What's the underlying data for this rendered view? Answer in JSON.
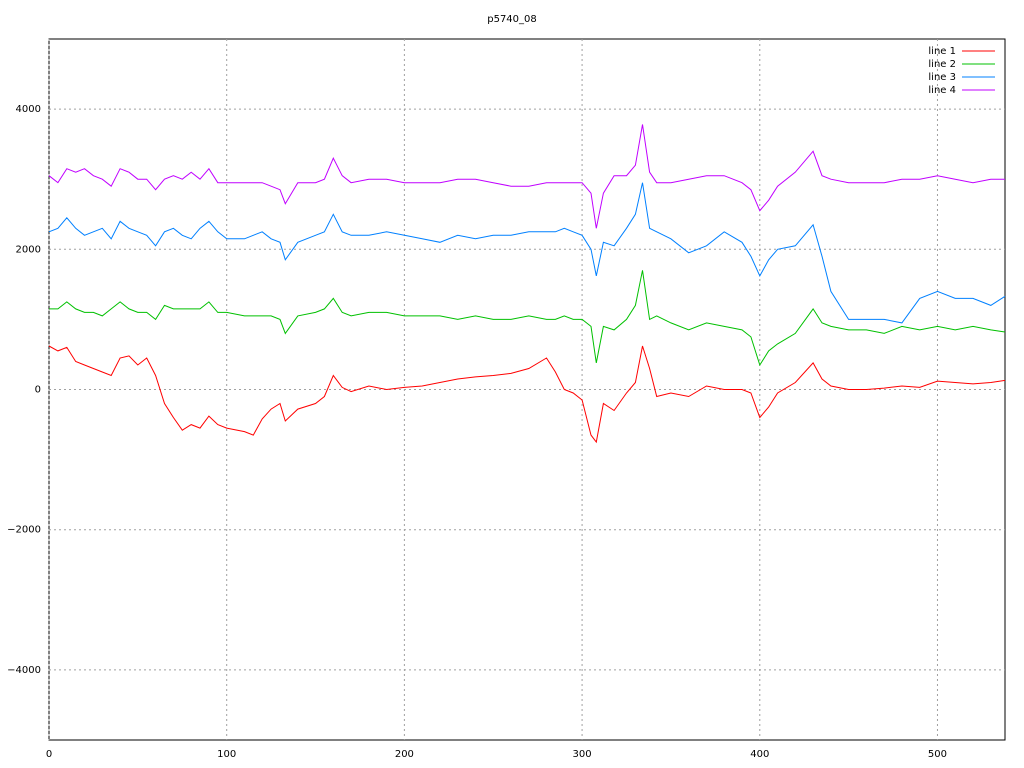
{
  "chart_data": {
    "type": "line",
    "title": "p5740_08",
    "x": [
      0,
      5,
      10,
      15,
      20,
      25,
      30,
      35,
      40,
      45,
      50,
      55,
      60,
      65,
      70,
      75,
      80,
      85,
      90,
      95,
      100,
      110,
      115,
      120,
      125,
      130,
      133,
      140,
      150,
      155,
      160,
      165,
      170,
      180,
      190,
      200,
      210,
      220,
      230,
      240,
      250,
      260,
      270,
      280,
      285,
      290,
      295,
      300,
      305,
      308,
      312,
      318,
      325,
      330,
      334,
      338,
      342,
      350,
      360,
      370,
      380,
      390,
      395,
      400,
      405,
      410,
      420,
      430,
      435,
      440,
      450,
      460,
      470,
      480,
      490,
      500,
      510,
      520,
      530,
      538
    ],
    "series": [
      {
        "name": "line 1",
        "color": "#ff0000",
        "values": [
          620,
          550,
          600,
          400,
          350,
          300,
          250,
          200,
          450,
          480,
          350,
          450,
          200,
          -200,
          -400,
          -580,
          -500,
          -550,
          -380,
          -500,
          -550,
          -600,
          -650,
          -420,
          -280,
          -200,
          -450,
          -280,
          -200,
          -100,
          200,
          30,
          -30,
          50,
          0,
          30,
          50,
          100,
          150,
          180,
          200,
          230,
          300,
          450,
          250,
          0,
          -50,
          -150,
          -650,
          -750,
          -200,
          -300,
          -50,
          100,
          620,
          300,
          -100,
          -50,
          -100,
          50,
          0,
          0,
          -50,
          -400,
          -250,
          -50,
          100,
          380,
          150,
          50,
          0,
          0,
          20,
          50,
          30,
          120,
          100,
          80,
          100,
          130
        ]
      },
      {
        "name": "line 2",
        "color": "#00c000",
        "values": [
          1150,
          1150,
          1250,
          1150,
          1100,
          1100,
          1050,
          1150,
          1250,
          1150,
          1100,
          1100,
          1000,
          1200,
          1150,
          1150,
          1150,
          1150,
          1250,
          1100,
          1100,
          1050,
          1050,
          1050,
          1050,
          1000,
          800,
          1050,
          1100,
          1150,
          1300,
          1100,
          1050,
          1100,
          1100,
          1050,
          1050,
          1050,
          1000,
          1050,
          1000,
          1000,
          1050,
          1000,
          1000,
          1050,
          1000,
          1000,
          900,
          380,
          900,
          850,
          1000,
          1200,
          1700,
          1000,
          1050,
          950,
          850,
          950,
          900,
          850,
          750,
          350,
          550,
          650,
          800,
          1150,
          950,
          900,
          850,
          850,
          800,
          900,
          850,
          900,
          850,
          900,
          850,
          820
        ]
      },
      {
        "name": "line 3",
        "color": "#0080ff",
        "values": [
          2250,
          2300,
          2450,
          2300,
          2200,
          2250,
          2300,
          2150,
          2400,
          2300,
          2250,
          2200,
          2050,
          2250,
          2300,
          2200,
          2150,
          2300,
          2400,
          2250,
          2150,
          2150,
          2200,
          2250,
          2150,
          2100,
          1850,
          2100,
          2200,
          2250,
          2500,
          2250,
          2200,
          2200,
          2250,
          2200,
          2150,
          2100,
          2200,
          2150,
          2200,
          2200,
          2250,
          2250,
          2250,
          2300,
          2250,
          2200,
          2000,
          1620,
          2100,
          2050,
          2300,
          2500,
          2950,
          2300,
          2250,
          2150,
          1950,
          2050,
          2250,
          2100,
          1900,
          1620,
          1850,
          2000,
          2050,
          2350,
          1900,
          1400,
          1000,
          1000,
          1000,
          950,
          1300,
          1400,
          1300,
          1300,
          1200,
          1330
        ]
      },
      {
        "name": "line 4",
        "color": "#c000ff",
        "values": [
          3050,
          2950,
          3150,
          3100,
          3150,
          3050,
          3000,
          2900,
          3150,
          3100,
          3000,
          3000,
          2850,
          3000,
          3050,
          3000,
          3100,
          3000,
          3150,
          2950,
          2950,
          2950,
          2950,
          2950,
          2900,
          2850,
          2650,
          2950,
          2950,
          3000,
          3300,
          3050,
          2950,
          3000,
          3000,
          2950,
          2950,
          2950,
          3000,
          3000,
          2950,
          2900,
          2900,
          2950,
          2950,
          2950,
          2950,
          2950,
          2800,
          2300,
          2800,
          3050,
          3050,
          3200,
          3780,
          3100,
          2950,
          2950,
          3000,
          3050,
          3050,
          2950,
          2850,
          2550,
          2700,
          2900,
          3100,
          3400,
          3050,
          3000,
          2950,
          2950,
          2950,
          3000,
          3000,
          3050,
          3000,
          2950,
          3000,
          3000
        ]
      }
    ],
    "xlim": [
      0,
      538
    ],
    "ylim": [
      -5000,
      5000
    ],
    "xticks": [
      0,
      100,
      200,
      300,
      400,
      500
    ],
    "yticks": [
      {
        "value": -4000,
        "label": "−4000"
      },
      {
        "value": -2000,
        "label": "−2000"
      },
      0,
      2000,
      4000
    ],
    "grid": true,
    "legend": "top-right"
  }
}
